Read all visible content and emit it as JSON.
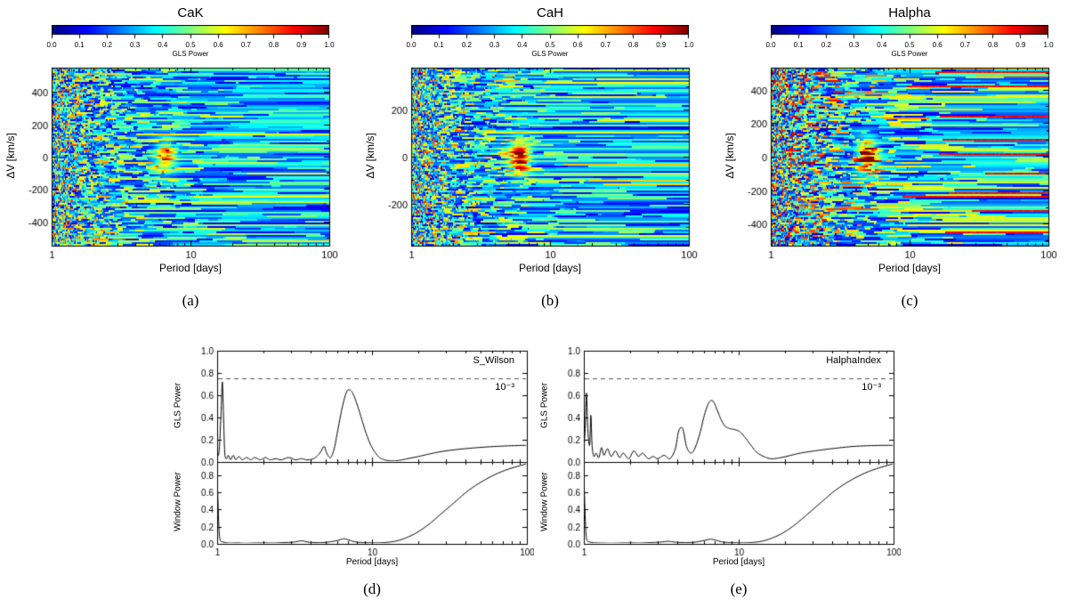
{
  "figure": {
    "background": "#ffffff",
    "line_color": "#000000",
    "dashed_color": "#555555",
    "colormap": "jet"
  },
  "chart_data": [
    {
      "id": "a",
      "type": "heatmap",
      "title": "CaK",
      "caption": "(a)",
      "xlabel": "Period [days]",
      "ylabel": "ΔV [km/s]",
      "x_scale": "log",
      "x_range": [
        1,
        100
      ],
      "x_major_ticks": [
        1,
        10,
        100
      ],
      "y_range": [
        -550,
        550
      ],
      "y_major_ticks": [
        -400,
        -200,
        0,
        200,
        400
      ],
      "y_minor_step": 100,
      "colorbar": {
        "label": "GLS Power",
        "range": [
          0,
          1
        ],
        "colormap": "jet",
        "ticks": [
          "0.0",
          "0.1",
          "0.2",
          "0.3",
          "0.4",
          "0.5",
          "0.6",
          "0.7",
          "0.8",
          "0.9",
          "1.0"
        ]
      },
      "appearance": {
        "seed": 17,
        "activity": 1.0,
        "red_streaks": false,
        "hotspot": {
          "period": 6.5,
          "dv": 0,
          "amplitude": 0.42
        }
      }
    },
    {
      "id": "b",
      "type": "heatmap",
      "title": "CaH",
      "caption": "(b)",
      "xlabel": "Period [days]",
      "ylabel": "ΔV [km/s]",
      "x_scale": "log",
      "x_range": [
        1,
        100
      ],
      "x_major_ticks": [
        1,
        10,
        100
      ],
      "y_range": [
        -380,
        380
      ],
      "y_major_ticks": [
        -200,
        0,
        200
      ],
      "y_minor_step": 100,
      "colorbar": {
        "label": "GLS Power",
        "range": [
          0,
          1
        ],
        "colormap": "jet",
        "ticks": [
          "0.0",
          "0.1",
          "0.2",
          "0.3",
          "0.4",
          "0.5",
          "0.6",
          "0.7",
          "0.8",
          "0.9",
          "1.0"
        ]
      },
      "appearance": {
        "seed": 53,
        "activity": 1.0,
        "red_streaks": false,
        "hotspot": {
          "period": 6.0,
          "dv": 0,
          "amplitude": 0.55
        }
      }
    },
    {
      "id": "c",
      "type": "heatmap",
      "title": "Halpha",
      "caption": "(c)",
      "xlabel": "Period [days]",
      "ylabel": "ΔV [km/s]",
      "x_scale": "log",
      "x_range": [
        1,
        100
      ],
      "x_major_ticks": [
        1,
        10,
        100
      ],
      "y_range": [
        -530,
        530
      ],
      "y_major_ticks": [
        -400,
        -200,
        0,
        200,
        400
      ],
      "y_minor_step": 100,
      "colorbar": {
        "label": "GLS Power",
        "range": [
          0,
          1
        ],
        "colormap": "jet",
        "ticks": [
          "0.0",
          "0.1",
          "0.2",
          "0.3",
          "0.4",
          "0.5",
          "0.6",
          "0.7",
          "0.8",
          "0.9",
          "1.0"
        ]
      },
      "appearance": {
        "seed": 91,
        "activity": 1.2,
        "red_streaks": true,
        "hotspot": {
          "period": 5.0,
          "dv": 0,
          "amplitude": 0.5
        }
      }
    },
    {
      "id": "d",
      "type": "line",
      "caption": "(d)",
      "annotation": "S_Wilson",
      "fap_line": {
        "level": 0.75,
        "label": "10⁻³"
      },
      "xlabel": "Period [days]",
      "x_scale": "log",
      "x_range": [
        1,
        100
      ],
      "x_major_ticks": [
        1,
        10,
        100
      ],
      "subplots": [
        {
          "ylabel": "GLS Power",
          "y_range": [
            0,
            1
          ],
          "y_ticks": [
            0,
            0.2,
            0.4,
            0.6,
            0.8,
            1
          ],
          "series": [
            [
              1.0,
              0.05
            ],
            [
              1.03,
              0.1
            ],
            [
              1.06,
              0.45
            ],
            [
              1.08,
              0.72
            ],
            [
              1.1,
              0.4
            ],
            [
              1.12,
              0.08
            ],
            [
              1.15,
              0.03
            ],
            [
              1.18,
              0.06
            ],
            [
              1.22,
              0.02
            ],
            [
              1.27,
              0.06
            ],
            [
              1.32,
              0.02
            ],
            [
              1.38,
              0.05
            ],
            [
              1.45,
              0.02
            ],
            [
              1.55,
              0.04
            ],
            [
              1.65,
              0.02
            ],
            [
              1.75,
              0.04
            ],
            [
              1.9,
              0.02
            ],
            [
              2.05,
              0.04
            ],
            [
              2.2,
              0.02
            ],
            [
              2.4,
              0.03
            ],
            [
              2.6,
              0.02
            ],
            [
              2.9,
              0.04
            ],
            [
              3.2,
              0.02
            ],
            [
              3.5,
              0.03
            ],
            [
              3.8,
              0.02
            ],
            [
              4.2,
              0.03
            ],
            [
              4.6,
              0.08
            ],
            [
              4.9,
              0.14
            ],
            [
              5.1,
              0.08
            ],
            [
              5.4,
              0.04
            ],
            [
              5.7,
              0.12
            ],
            [
              6.0,
              0.28
            ],
            [
              6.4,
              0.48
            ],
            [
              6.8,
              0.62
            ],
            [
              7.1,
              0.65
            ],
            [
              7.5,
              0.62
            ],
            [
              8.0,
              0.52
            ],
            [
              8.6,
              0.38
            ],
            [
              9.2,
              0.25
            ],
            [
              10,
              0.13
            ],
            [
              11,
              0.05
            ],
            [
              12,
              0.02
            ],
            [
              13.5,
              0.01
            ],
            [
              15,
              0.015
            ],
            [
              17,
              0.03
            ],
            [
              20,
              0.05
            ],
            [
              24,
              0.075
            ],
            [
              30,
              0.1
            ],
            [
              40,
              0.12
            ],
            [
              55,
              0.135
            ],
            [
              75,
              0.145
            ],
            [
              100,
              0.15
            ]
          ]
        },
        {
          "ylabel": "Window Power",
          "y_range": [
            0,
            0.95
          ],
          "y_ticks": [
            0,
            0.2,
            0.4,
            0.6,
            0.8
          ],
          "series": [
            [
              1.0,
              0.88
            ],
            [
              1.01,
              0.55
            ],
            [
              1.03,
              0.15
            ],
            [
              1.05,
              0.04
            ],
            [
              1.1,
              0.02
            ],
            [
              1.2,
              0.01
            ],
            [
              1.35,
              0.012
            ],
            [
              1.5,
              0.008
            ],
            [
              1.7,
              0.01
            ],
            [
              2.0,
              0.012
            ],
            [
              2.3,
              0.01
            ],
            [
              2.7,
              0.015
            ],
            [
              3.1,
              0.02
            ],
            [
              3.5,
              0.035
            ],
            [
              3.9,
              0.02
            ],
            [
              4.5,
              0.015
            ],
            [
              5.2,
              0.02
            ],
            [
              6.0,
              0.04
            ],
            [
              6.6,
              0.06
            ],
            [
              7.2,
              0.04
            ],
            [
              8.0,
              0.02
            ],
            [
              9.0,
              0.015
            ],
            [
              10.5,
              0.012
            ],
            [
              12,
              0.015
            ],
            [
              14,
              0.03
            ],
            [
              16,
              0.06
            ],
            [
              19,
              0.12
            ],
            [
              23,
              0.22
            ],
            [
              28,
              0.35
            ],
            [
              34,
              0.48
            ],
            [
              42,
              0.62
            ],
            [
              52,
              0.73
            ],
            [
              65,
              0.82
            ],
            [
              80,
              0.88
            ],
            [
              100,
              0.93
            ]
          ]
        }
      ]
    },
    {
      "id": "e",
      "type": "line",
      "caption": "(e)",
      "annotation": "HalphaIndex",
      "fap_line": {
        "level": 0.75,
        "label": "10⁻³"
      },
      "xlabel": "Period [days]",
      "x_scale": "log",
      "x_range": [
        1,
        100
      ],
      "x_major_ticks": [
        1,
        10,
        100
      ],
      "subplots": [
        {
          "ylabel": "GLS Power",
          "y_range": [
            0,
            1
          ],
          "y_ticks": [
            0,
            0.2,
            0.4,
            0.6,
            0.8,
            1
          ],
          "series": [
            [
              1.0,
              0.1
            ],
            [
              1.02,
              0.3
            ],
            [
              1.04,
              0.62
            ],
            [
              1.06,
              0.3
            ],
            [
              1.09,
              0.15
            ],
            [
              1.11,
              0.42
            ],
            [
              1.13,
              0.15
            ],
            [
              1.16,
              0.05
            ],
            [
              1.2,
              0.08
            ],
            [
              1.25,
              0.04
            ],
            [
              1.3,
              0.13
            ],
            [
              1.35,
              0.06
            ],
            [
              1.42,
              0.12
            ],
            [
              1.5,
              0.05
            ],
            [
              1.6,
              0.1
            ],
            [
              1.7,
              0.04
            ],
            [
              1.8,
              0.08
            ],
            [
              1.95,
              0.03
            ],
            [
              2.1,
              0.1
            ],
            [
              2.25,
              0.05
            ],
            [
              2.4,
              0.08
            ],
            [
              2.6,
              0.03
            ],
            [
              2.8,
              0.05
            ],
            [
              3.0,
              0.03
            ],
            [
              3.3,
              0.06
            ],
            [
              3.6,
              0.03
            ],
            [
              3.9,
              0.12
            ],
            [
              4.1,
              0.28
            ],
            [
              4.35,
              0.3
            ],
            [
              4.6,
              0.14
            ],
            [
              4.9,
              0.08
            ],
            [
              5.2,
              0.12
            ],
            [
              5.6,
              0.25
            ],
            [
              6.0,
              0.42
            ],
            [
              6.4,
              0.53
            ],
            [
              6.8,
              0.55
            ],
            [
              7.2,
              0.48
            ],
            [
              7.7,
              0.38
            ],
            [
              8.2,
              0.32
            ],
            [
              8.8,
              0.3
            ],
            [
              9.5,
              0.29
            ],
            [
              10.2,
              0.27
            ],
            [
              11,
              0.22
            ],
            [
              12,
              0.15
            ],
            [
              13,
              0.09
            ],
            [
              14.5,
              0.05
            ],
            [
              16,
              0.03
            ],
            [
              18,
              0.035
            ],
            [
              21,
              0.055
            ],
            [
              25,
              0.08
            ],
            [
              31,
              0.1
            ],
            [
              40,
              0.12
            ],
            [
              55,
              0.14
            ],
            [
              75,
              0.148
            ],
            [
              100,
              0.15
            ]
          ]
        },
        {
          "ylabel": "Window Power",
          "y_range": [
            0,
            0.95
          ],
          "y_ticks": [
            0,
            0.2,
            0.4,
            0.6,
            0.8
          ],
          "series": [
            [
              1.0,
              0.9
            ],
            [
              1.01,
              0.55
            ],
            [
              1.03,
              0.15
            ],
            [
              1.05,
              0.04
            ],
            [
              1.1,
              0.02
            ],
            [
              1.2,
              0.012
            ],
            [
              1.35,
              0.01
            ],
            [
              1.5,
              0.008
            ],
            [
              1.7,
              0.01
            ],
            [
              2.0,
              0.012
            ],
            [
              2.3,
              0.01
            ],
            [
              2.7,
              0.015
            ],
            [
              3.1,
              0.02
            ],
            [
              3.5,
              0.03
            ],
            [
              3.9,
              0.02
            ],
            [
              4.5,
              0.015
            ],
            [
              5.2,
              0.02
            ],
            [
              6.0,
              0.04
            ],
            [
              6.6,
              0.055
            ],
            [
              7.2,
              0.04
            ],
            [
              8.0,
              0.02
            ],
            [
              9.0,
              0.015
            ],
            [
              10.5,
              0.012
            ],
            [
              12,
              0.015
            ],
            [
              14,
              0.03
            ],
            [
              16,
              0.06
            ],
            [
              19,
              0.12
            ],
            [
              23,
              0.22
            ],
            [
              28,
              0.35
            ],
            [
              34,
              0.48
            ],
            [
              42,
              0.62
            ],
            [
              52,
              0.73
            ],
            [
              65,
              0.82
            ],
            [
              80,
              0.88
            ],
            [
              100,
              0.93
            ]
          ]
        }
      ]
    }
  ]
}
